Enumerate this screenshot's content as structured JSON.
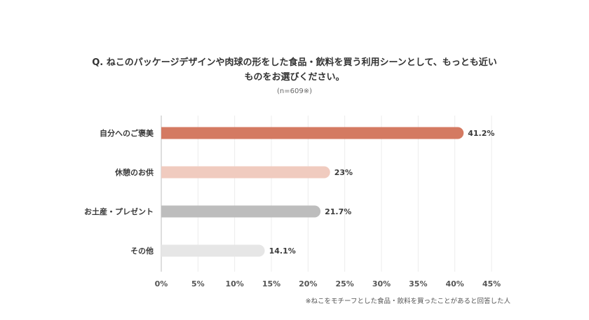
{
  "chart_data": {
    "type": "bar",
    "orientation": "horizontal",
    "title_line1": "Q. ねこのパッケージデザインや肉球の形をした食品・飲料を買う利用シーンとして、もっとも近い",
    "title_line2": "ものをお選びください。",
    "subtitle": "(n=609※)",
    "categories": [
      "自分へのご褒美",
      "休憩のお供",
      "お土産・プレゼント",
      "その他"
    ],
    "values": [
      41.2,
      23,
      21.7,
      14.1
    ],
    "value_labels": [
      "41.2%",
      "23%",
      "21.7%",
      "14.1%"
    ],
    "colors": [
      "#d47a62",
      "#f0cbbf",
      "#bdbdbd",
      "#e6e6e6"
    ],
    "xlim": [
      0,
      45
    ],
    "xticks": [
      0,
      5,
      10,
      15,
      20,
      25,
      30,
      35,
      40,
      45
    ],
    "xtick_labels": [
      "0%",
      "5%",
      "10%",
      "15%",
      "20%",
      "25%",
      "30%",
      "35%",
      "40%",
      "45%"
    ],
    "grid": true,
    "footnote": "※ねこをモチーフとした食品・飲料を買ったことがあると回答した人"
  }
}
